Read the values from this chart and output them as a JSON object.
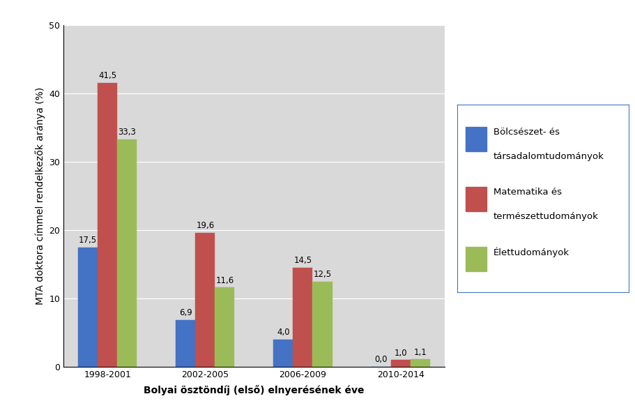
{
  "categories": [
    "1998-2001",
    "2002-2005",
    "2006-2009",
    "2010-2014"
  ],
  "series": [
    {
      "name": "Bölcsészet- és\ntársadalomtudományok",
      "values": [
        17.5,
        6.9,
        4.0,
        0.0
      ],
      "color": "#4472C4"
    },
    {
      "name": "Matematika és\ntermészettudományok",
      "values": [
        41.5,
        19.6,
        14.5,
        1.0
      ],
      "color": "#C0504D"
    },
    {
      "name": "Élettudományok",
      "values": [
        33.3,
        11.6,
        12.5,
        1.1
      ],
      "color": "#9BBB59"
    }
  ],
  "ylabel": "MTA doktora címmel rendelkezők aránya (%)",
  "xlabel": "Bolyai ösztöndíj (első) elnyerésének éve",
  "ylim": [
    0,
    50
  ],
  "yticks": [
    0,
    10,
    20,
    30,
    40,
    50
  ],
  "bar_width": 0.2,
  "figure_bg": "#FFFFFF",
  "plot_bg": "#D9D9D9",
  "legend_bg": "#FFFFFF",
  "legend_edge": "#4472C4",
  "grid_color": "#FFFFFF",
  "label_fontsize": 8.5,
  "axis_label_fontsize": 10,
  "tick_fontsize": 9,
  "legend_fontsize": 9.5
}
